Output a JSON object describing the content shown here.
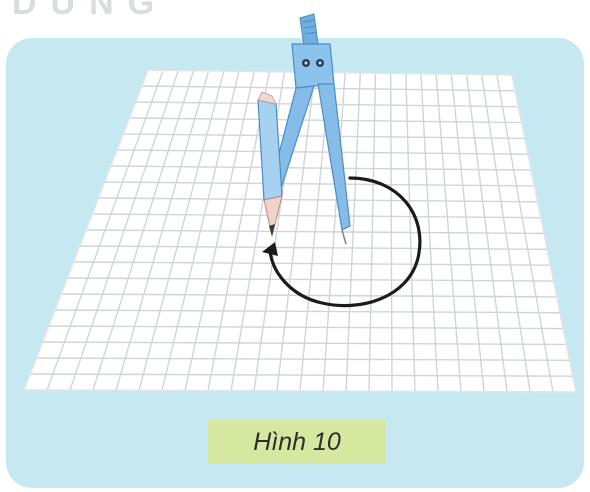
{
  "header": {
    "partial_text": "DUNG"
  },
  "figure": {
    "caption": "Hình 10",
    "colors": {
      "panel": "#c6e8f1",
      "grid_paper": "#ffffff",
      "grid_lines": "#d0d6da",
      "compass": "#7fb8e6",
      "arc": "#1b1b1b",
      "caption_bg": "#d6e8a0"
    },
    "icons": [
      "compass-icon",
      "arc-arrow-icon"
    ]
  }
}
